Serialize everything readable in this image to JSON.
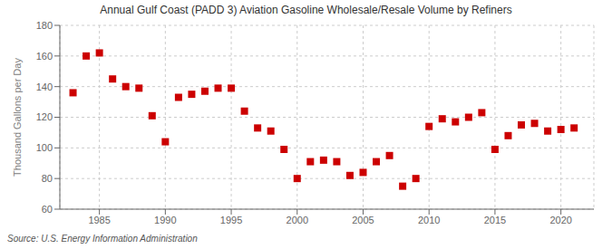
{
  "chart_data": {
    "type": "scatter",
    "title": "Annual Gulf Coast (PADD 3) Aviation Gasoline Wholesale/Resale Volume by Refiners",
    "ylabel": "Thousand Gallons per Day",
    "annotations": [
      "Source: U.S. Energy Information Administration"
    ],
    "color": "#cc0000",
    "marker": "square",
    "grid": true,
    "xlim": [
      1982,
      2022.5
    ],
    "xticks": [
      1985,
      1990,
      1995,
      2000,
      2005,
      2010,
      2015,
      2020
    ],
    "ylim": [
      60,
      180
    ],
    "yticks": [
      60,
      80,
      100,
      120,
      140,
      160,
      180
    ],
    "x": [
      1983,
      1984,
      1985,
      1986,
      1987,
      1988,
      1989,
      1990,
      1991,
      1992,
      1993,
      1994,
      1995,
      1996,
      1997,
      1998,
      1999,
      2000,
      2001,
      2002,
      2003,
      2004,
      2005,
      2006,
      2007,
      2008,
      2009,
      2010,
      2011,
      2012,
      2013,
      2014,
      2015,
      2016,
      2017,
      2018,
      2019,
      2020,
      2021
    ],
    "values": [
      136,
      160,
      162,
      145,
      140,
      139,
      121,
      104,
      133,
      135,
      137,
      139,
      139,
      124,
      113,
      111,
      99,
      80,
      91,
      92,
      91,
      82,
      84,
      91,
      95,
      75,
      80,
      114,
      119,
      117,
      120,
      123,
      99,
      108,
      115,
      116,
      111,
      112,
      113
    ]
  }
}
